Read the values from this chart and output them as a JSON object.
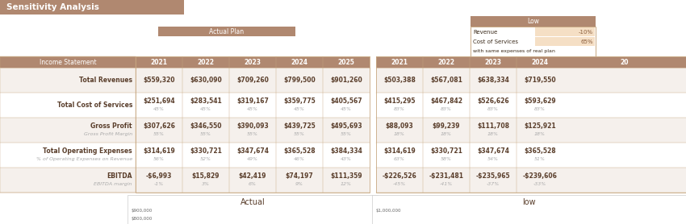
{
  "title": "Sensitivity Analysis",
  "title_bg": "#b08870",
  "title_color": "#ffffff",
  "bg_color": "#ffffff",
  "header_bg": "#b08870",
  "header_color": "#ffffff",
  "data_border": "#c8a882",
  "dark_text": "#5a3e2b",
  "actual_plan_label": "Actual Plan",
  "low_label": "Low",
  "low_box_bg": "#f5dfc5",
  "years": [
    "2021",
    "2022",
    "2023",
    "2024",
    "2025"
  ],
  "income_rows": [
    {
      "label": "Total Revenues",
      "bold": true,
      "sub_label": "",
      "actual": [
        "$559,320",
        "$630,090",
        "$709,260",
        "$799,500",
        "$901,260"
      ],
      "actual_pct": [
        "",
        "",
        "",
        "",
        ""
      ],
      "low": [
        "$503,388",
        "$567,081",
        "$638,334",
        "$719,550",
        ""
      ],
      "low_pct": [
        "",
        "",
        "",
        "",
        ""
      ]
    },
    {
      "label": "Total Cost of Services",
      "bold": true,
      "sub_label": "",
      "actual": [
        "$251,694",
        "$283,541",
        "$319,167",
        "$359,775",
        "$405,567"
      ],
      "actual_pct": [
        "45%",
        "45%",
        "45%",
        "45%",
        "45%"
      ],
      "low": [
        "$415,295",
        "$467,842",
        "$526,626",
        "$593,629",
        ""
      ],
      "low_pct": [
        "83%",
        "83%",
        "83%",
        "83%",
        ""
      ]
    },
    {
      "label": "Gross Profit",
      "bold": true,
      "sub_label": "Gross Profit Margin",
      "actual": [
        "$307,626",
        "$346,550",
        "$390,093",
        "$439,725",
        "$495,693"
      ],
      "actual_pct": [
        "55%",
        "55%",
        "55%",
        "55%",
        "55%"
      ],
      "low": [
        "$88,093",
        "$99,239",
        "$111,708",
        "$125,921",
        ""
      ],
      "low_pct": [
        "18%",
        "18%",
        "18%",
        "18%",
        ""
      ]
    },
    {
      "label": "Total Operating Expenses",
      "bold": true,
      "sub_label": "% of Operating Expenses on Revenue",
      "actual": [
        "$314,619",
        "$330,721",
        "$347,674",
        "$365,528",
        "$384,334"
      ],
      "actual_pct": [
        "56%",
        "52%",
        "49%",
        "46%",
        "43%"
      ],
      "low": [
        "$314,619",
        "$330,721",
        "$347,674",
        "$365,528",
        ""
      ],
      "low_pct": [
        "63%",
        "58%",
        "54%",
        "51%",
        ""
      ]
    },
    {
      "label": "EBITDA",
      "bold": true,
      "sub_label": "EBITDA margin",
      "actual": [
        "-$6,993",
        "$15,829",
        "$42,419",
        "$74,197",
        "$111,359"
      ],
      "actual_pct": [
        "-1%",
        "3%",
        "6%",
        "9%",
        "12%"
      ],
      "low": [
        "-$226,526",
        "-$231,481",
        "-$235,965",
        "-$239,606",
        ""
      ],
      "low_pct": [
        "-45%",
        "-41%",
        "-37%",
        "-33%",
        ""
      ]
    }
  ],
  "chart_actual_title": "Actual",
  "chart_low_title": "low",
  "chart_actual_y_ticks": [
    "$900,000",
    "$800,000"
  ],
  "chart_low_y_ticks": [
    "$1,000,000"
  ]
}
